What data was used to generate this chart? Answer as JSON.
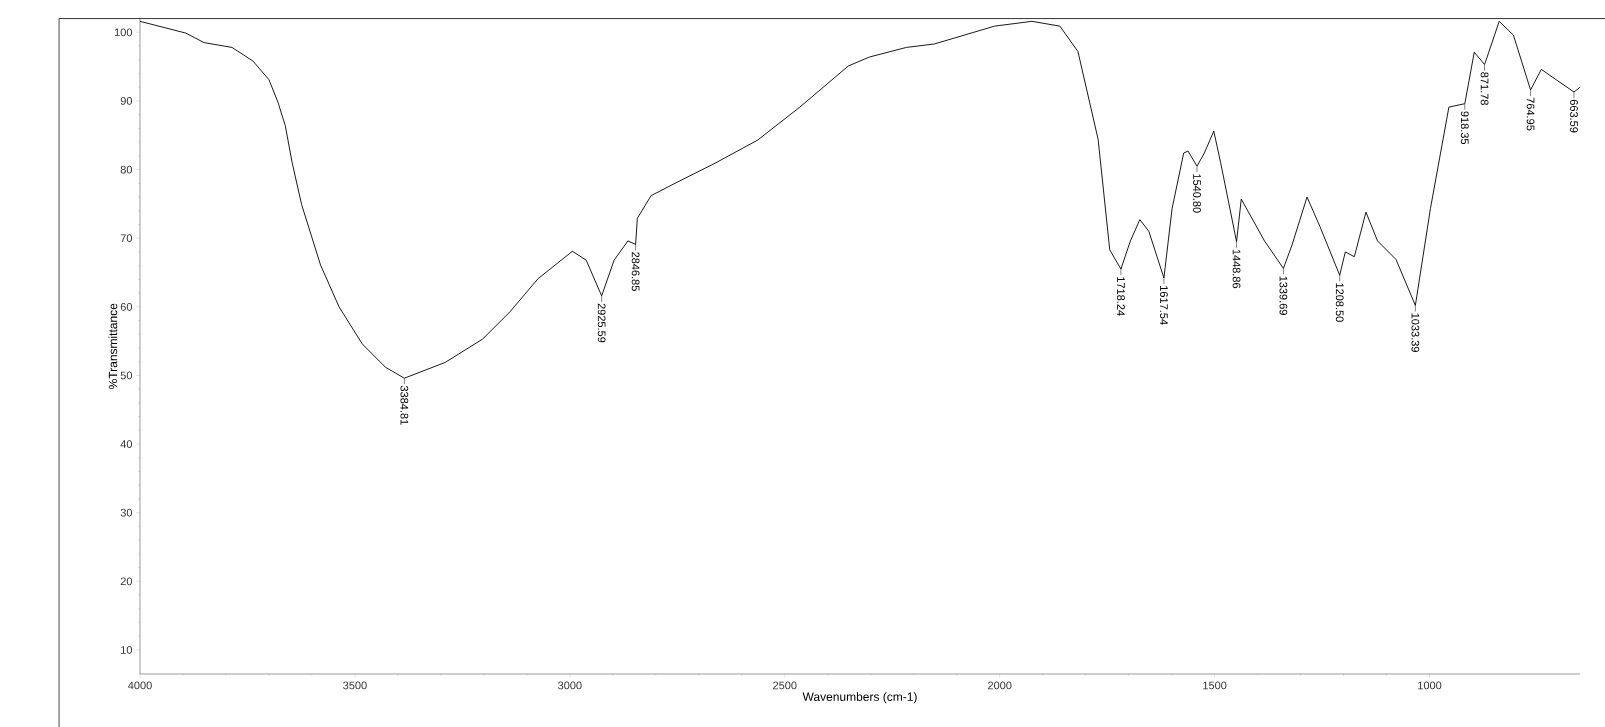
{
  "chart_data": {
    "type": "line",
    "xlabel": "Wavenumbers (cm-1)",
    "ylabel": "%Transmittance",
    "xlim": [
      4000,
      650
    ],
    "ylim": [
      6.5,
      102
    ],
    "xticks": [
      4000,
      3500,
      3000,
      2500,
      2000,
      1500,
      1000
    ],
    "yticks": [
      10,
      20,
      30,
      40,
      50,
      60,
      70,
      80,
      90,
      100
    ],
    "grid": false,
    "marker": "none",
    "line_style": "solid",
    "x": [
      4000,
      3894,
      3851,
      3786,
      3737,
      3700,
      3679,
      3662,
      3646,
      3624,
      3580,
      3537,
      3483,
      3429,
      3385,
      3290,
      3203,
      3139,
      3074,
      2994,
      2962,
      2926,
      2897,
      2865,
      2847,
      2843,
      2811,
      2746,
      2660,
      2563,
      2465,
      2352,
      2303,
      2217,
      2152,
      2012,
      1925,
      1860,
      1818,
      1771,
      1744,
      1718,
      1696,
      1674,
      1653,
      1618,
      1599,
      1572,
      1562,
      1541,
      1524,
      1502,
      1486,
      1449,
      1438,
      1384,
      1340,
      1320,
      1285,
      1255,
      1209,
      1196,
      1175,
      1148,
      1121,
      1078,
      1033,
      998,
      955,
      918,
      896,
      872,
      838,
      805,
      765,
      740,
      708,
      664,
      650
    ],
    "series": [
      {
        "color": "#000000",
        "values": [
          101.6,
          99.9,
          98.5,
          97.8,
          95.8,
          93.1,
          89.8,
          86.4,
          81,
          74.9,
          66.1,
          60,
          54.6,
          51.2,
          49.6,
          51.9,
          55.3,
          59.3,
          64.1,
          68.1,
          66.8,
          61.6,
          66.8,
          69.6,
          69.1,
          72.9,
          76.2,
          78.3,
          81,
          84.3,
          89.1,
          95.1,
          96.4,
          97.8,
          98.3,
          100.9,
          101.6,
          100.9,
          97.2,
          84.4,
          68.3,
          65.5,
          69.6,
          72.7,
          71,
          64.2,
          74.3,
          82.4,
          82.7,
          80.5,
          82.4,
          85.6,
          81,
          69.5,
          75.7,
          69.6,
          65.6,
          69,
          76,
          71.7,
          64.6,
          68,
          67.3,
          73.8,
          69.6,
          66.9,
          60.2,
          74.3,
          89.1,
          89.6,
          97.1,
          95.3,
          101.6,
          99.6,
          91.6,
          94.6,
          93.2,
          91.3,
          92
        ]
      }
    ],
    "annotations": [
      {
        "text": "3384.81",
        "x": 3385,
        "y": 49.6
      },
      {
        "text": "2925.59",
        "x": 2926,
        "y": 61.6
      },
      {
        "text": "2846.85",
        "x": 2847,
        "y": 69.1
      },
      {
        "text": "1718.24",
        "x": 1718,
        "y": 65.5
      },
      {
        "text": "1617.54",
        "x": 1618,
        "y": 64.2
      },
      {
        "text": "1540.80",
        "x": 1541,
        "y": 80.5
      },
      {
        "text": "1448.86",
        "x": 1449,
        "y": 69.5
      },
      {
        "text": "1339.69",
        "x": 1340,
        "y": 65.6
      },
      {
        "text": "1208.50",
        "x": 1209,
        "y": 64.6
      },
      {
        "text": "1033.39",
        "x": 1033,
        "y": 60.2
      },
      {
        "text": "918.35",
        "x": 918,
        "y": 89.6
      },
      {
        "text": "871.78",
        "x": 872,
        "y": 95.3
      },
      {
        "text": "764.95",
        "x": 765,
        "y": 91.6
      },
      {
        "text": "663.59",
        "x": 664,
        "y": 91.3
      }
    ]
  }
}
